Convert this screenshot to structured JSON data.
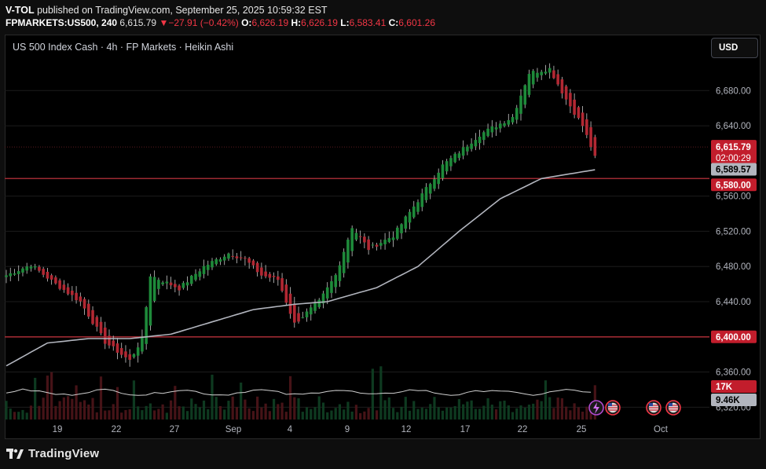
{
  "header": {
    "publisher": "V-TOL",
    "published_text": "published on TradingView.com, September 25, 2025 10:59:32 EST",
    "symbol": "FPMARKETS:US500, 240",
    "last": "6,615.79",
    "change": "−27.91 (−0.42%)",
    "o_label": "O:",
    "o_value": "6,626.19",
    "h_label": "H:",
    "h_value": "6,626.19",
    "l_label": "L:",
    "l_value": "6,583.41",
    "c_label": "C:",
    "c_value": "6,601.26"
  },
  "instrument": "US 500 Index Cash · 4h · FP Markets · Heikin Ashi",
  "currency_button": "USD",
  "footer_brand": "TradingView",
  "colors": {
    "up": "#089981",
    "down": "#f23645",
    "up_candle": "#1e8a3a",
    "down_candle": "#b22833",
    "ma": "#b2b5be",
    "level": "#9c2a32",
    "badge_red": "#c21d2c",
    "badge_gray": "#b2b5be"
  },
  "chart_data": {
    "type": "candlestick",
    "style": "Heikin Ashi",
    "interval": "4h",
    "y_ticks": [
      "6,680.00",
      "6,640.00",
      "6,560.00",
      "6,520.00",
      "6,480.00",
      "6,440.00",
      "6,360.00",
      "6,320.00"
    ],
    "y_tick_values": [
      6680,
      6640,
      6560,
      6520,
      6480,
      6440,
      6360,
      6320
    ],
    "ylim": [
      6306,
      6716
    ],
    "x_ticks": [
      "19",
      "22",
      "27",
      "Sep",
      "4",
      "9",
      "12",
      "17",
      "22",
      "25",
      "Oct"
    ],
    "horizontal_levels": [
      6580,
      6400
    ],
    "price_badges": {
      "last": "6,615.79",
      "countdown": "02:00:29",
      "ma": "6,589.57",
      "level_upper": "6,580.00",
      "level_lower": "6,400.00"
    },
    "volume_badges": {
      "volume": "17K",
      "volume_ma": "9.46K"
    },
    "last_price": 6615.79,
    "ma_value": 6589.57,
    "candle_count": 128,
    "anchors": [
      {
        "i": 0,
        "p": 6470
      },
      {
        "i": 6,
        "p": 6482
      },
      {
        "i": 12,
        "p": 6460
      },
      {
        "i": 18,
        "p": 6440
      },
      {
        "i": 24,
        "p": 6394
      },
      {
        "i": 30,
        "p": 6373
      },
      {
        "i": 33,
        "p": 6398
      },
      {
        "i": 35,
        "p": 6470
      },
      {
        "i": 42,
        "p": 6455
      },
      {
        "i": 48,
        "p": 6480
      },
      {
        "i": 54,
        "p": 6495
      },
      {
        "i": 58,
        "p": 6488
      },
      {
        "i": 62,
        "p": 6470
      },
      {
        "i": 66,
        "p": 6465
      },
      {
        "i": 70,
        "p": 6415
      },
      {
        "i": 76,
        "p": 6440
      },
      {
        "i": 80,
        "p": 6470
      },
      {
        "i": 84,
        "p": 6525
      },
      {
        "i": 88,
        "p": 6500
      },
      {
        "i": 94,
        "p": 6515
      },
      {
        "i": 100,
        "p": 6555
      },
      {
        "i": 106,
        "p": 6595
      },
      {
        "i": 110,
        "p": 6610
      },
      {
        "i": 115,
        "p": 6630
      },
      {
        "i": 121,
        "p": 6645
      },
      {
        "i": 123,
        "p": 6650
      },
      {
        "i": 127,
        "p": 6700
      },
      {
        "i": 132,
        "p": 6705
      },
      {
        "i": 136,
        "p": 6670
      },
      {
        "i": 140,
        "p": 6640
      },
      {
        "i": 143,
        "p": 6605
      }
    ],
    "ma_points": [
      {
        "i": 0,
        "p": 6367
      },
      {
        "i": 10,
        "p": 6393
      },
      {
        "i": 20,
        "p": 6398
      },
      {
        "i": 30,
        "p": 6398
      },
      {
        "i": 40,
        "p": 6403
      },
      {
        "i": 50,
        "p": 6417
      },
      {
        "i": 60,
        "p": 6431
      },
      {
        "i": 70,
        "p": 6437
      },
      {
        "i": 78,
        "p": 6440
      },
      {
        "i": 90,
        "p": 6456
      },
      {
        "i": 100,
        "p": 6480
      },
      {
        "i": 110,
        "p": 6520
      },
      {
        "i": 120,
        "p": 6557
      },
      {
        "i": 130,
        "p": 6580
      },
      {
        "i": 143,
        "p": 6590
      }
    ]
  }
}
